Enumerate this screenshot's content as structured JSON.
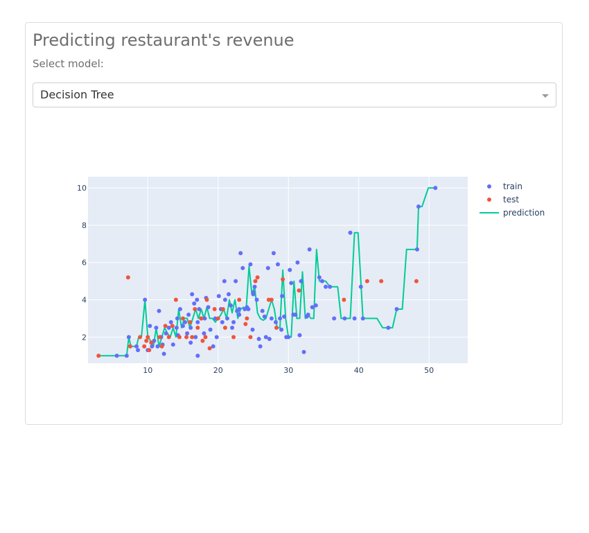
{
  "page": {
    "title": "Predicting restaurant's revenue",
    "select_label": "Select model:",
    "selected_model": "Decision Tree"
  },
  "colors": {
    "train": "#636efa",
    "test": "#ef553b",
    "prediction": "#00cc96",
    "plot_bg": "#e5ecf6",
    "grid": "#ffffff",
    "axis_text": "#2a3f5f"
  },
  "chart_data": {
    "type": "scatter",
    "title": "",
    "xlabel": "",
    "ylabel": "",
    "xlim": [
      1.5,
      55.5
    ],
    "ylim": [
      0.6,
      10.6
    ],
    "x_ticks": [
      10,
      20,
      30,
      40,
      50
    ],
    "y_ticks": [
      2,
      4,
      6,
      8,
      10
    ],
    "legend": {
      "position": "top-right",
      "entries": [
        "train",
        "test",
        "prediction"
      ]
    },
    "series": [
      {
        "name": "train",
        "mode": "markers",
        "x": [
          5.6,
          7.0,
          7.3,
          8.4,
          8.6,
          9.6,
          10.3,
          10.6,
          10.9,
          11.2,
          11.4,
          11.6,
          11.9,
          12.1,
          12.6,
          13.0,
          13.3,
          13.6,
          14.1,
          14.2,
          14.3,
          14.6,
          15.0,
          15.3,
          15.6,
          15.8,
          16.1,
          16.3,
          16.6,
          16.8,
          17.0,
          17.1,
          17.3,
          17.6,
          18.0,
          18.1,
          18.3,
          18.6,
          18.9,
          19.3,
          19.6,
          19.8,
          20.1,
          20.4,
          20.6,
          20.9,
          21.0,
          21.3,
          21.5,
          21.8,
          22.0,
          22.2,
          22.5,
          22.7,
          23.0,
          23.2,
          23.5,
          23.8,
          24.1,
          24.3,
          24.6,
          24.9,
          25.0,
          25.2,
          25.5,
          25.8,
          26.0,
          26.3,
          26.6,
          26.8,
          27.1,
          27.3,
          27.6,
          27.9,
          28.2,
          28.5,
          28.8,
          29.1,
          29.4,
          29.7,
          30.0,
          30.2,
          30.4,
          30.7,
          31.0,
          31.3,
          31.8,
          32.2,
          32.6,
          33.0,
          33.4,
          33.9,
          34.4,
          34.8,
          35.3,
          35.9,
          36.5,
          38.0,
          38.8,
          39.4,
          40.3,
          40.6,
          44.2,
          45.4,
          48.3,
          48.5,
          50.9,
          12.3,
          17.1,
          32.8,
          10.0,
          16.1,
          29.0,
          31.6,
          23.0,
          25.0
        ],
        "y": [
          1.0,
          1.0,
          2.0,
          1.5,
          1.3,
          4.0,
          2.6,
          1.5,
          1.8,
          2.5,
          1.5,
          3.4,
          2.0,
          1.6,
          2.2,
          2.5,
          2.8,
          1.6,
          2.5,
          3.0,
          2.1,
          3.5,
          2.6,
          2.8,
          2.2,
          3.2,
          2.5,
          4.3,
          3.8,
          2.0,
          4.0,
          2.8,
          3.5,
          3.0,
          2.2,
          3.0,
          4.1,
          3.6,
          2.4,
          1.5,
          3.0,
          2.0,
          4.2,
          3.5,
          2.8,
          5.0,
          4.0,
          3.0,
          4.3,
          3.7,
          2.5,
          2.8,
          5.0,
          3.4,
          3.2,
          6.5,
          5.7,
          3.5,
          3.6,
          3.5,
          5.9,
          2.4,
          4.3,
          4.7,
          4.0,
          1.9,
          1.5,
          3.4,
          3.1,
          2.0,
          5.7,
          1.9,
          3.0,
          6.5,
          2.8,
          5.9,
          3.0,
          4.2,
          3.1,
          2.0,
          2.0,
          5.6,
          4.9,
          3.2,
          3.2,
          6.0,
          5.0,
          1.2,
          3.1,
          6.7,
          3.6,
          3.7,
          5.2,
          5.0,
          4.7,
          4.7,
          3.0,
          3.0,
          7.6,
          3.0,
          4.7,
          3.0,
          2.5,
          3.5,
          6.7,
          9.0,
          10.0,
          1.1,
          1.0,
          3.2,
          1.3,
          1.7,
          2.4,
          2.1,
          3.5,
          4.4
        ],
        "color": "#636efa"
      },
      {
        "name": "test",
        "mode": "markers",
        "x": [
          3.0,
          7.2,
          7.5,
          8.9,
          9.5,
          9.8,
          10.0,
          10.2,
          10.5,
          11.7,
          12.0,
          12.5,
          13.0,
          13.5,
          14.0,
          14.5,
          15.0,
          15.5,
          16.0,
          16.3,
          16.7,
          17.1,
          17.6,
          17.8,
          18.2,
          18.4,
          18.8,
          19.5,
          20.0,
          20.7,
          21.0,
          22.2,
          23.0,
          23.9,
          24.1,
          24.6,
          25.3,
          25.6,
          27.2,
          27.6,
          28.3,
          29.2,
          31.5,
          37.9,
          41.2,
          43.2,
          48.2
        ],
        "y": [
          1.0,
          5.2,
          1.5,
          2.0,
          1.5,
          1.8,
          2.0,
          1.3,
          1.7,
          2.0,
          1.5,
          2.6,
          2.0,
          2.6,
          4.0,
          2.0,
          3.0,
          2.0,
          2.8,
          2.0,
          3.5,
          2.5,
          3.0,
          1.8,
          2.0,
          4.0,
          1.4,
          3.5,
          3.0,
          3.5,
          2.5,
          2.0,
          4.0,
          2.7,
          3.0,
          2.0,
          5.0,
          5.2,
          4.0,
          4.0,
          2.5,
          5.1,
          4.5,
          4.0,
          5.0,
          5.0,
          5.0
        ],
        "color": "#ef553b"
      },
      {
        "name": "prediction",
        "mode": "lines",
        "x": [
          3.0,
          5.6,
          7.0,
          7.3,
          7.6,
          8.0,
          8.4,
          8.7,
          9.1,
          9.6,
          10.0,
          10.4,
          10.8,
          11.2,
          11.6,
          12.0,
          12.4,
          12.8,
          13.2,
          13.6,
          14.0,
          14.4,
          14.8,
          15.2,
          15.6,
          16.0,
          16.4,
          16.8,
          17.2,
          17.6,
          18.0,
          18.4,
          18.8,
          19.2,
          19.6,
          20.0,
          20.4,
          20.8,
          21.2,
          21.6,
          22.0,
          22.4,
          22.8,
          23.2,
          23.6,
          24.0,
          24.4,
          24.8,
          25.2,
          25.6,
          26.0,
          26.4,
          26.8,
          27.2,
          27.6,
          28.0,
          28.4,
          28.8,
          29.2,
          29.6,
          30.0,
          30.4,
          30.8,
          31.2,
          31.6,
          32.0,
          32.4,
          32.8,
          33.2,
          33.6,
          34.0,
          34.4,
          34.8,
          35.3,
          35.9,
          36.5,
          37.0,
          37.5,
          38.0,
          38.8,
          39.4,
          39.9,
          40.6,
          41.2,
          42.0,
          42.6,
          43.4,
          44.2,
          44.8,
          45.4,
          46.2,
          46.8,
          47.4,
          48.3,
          48.5,
          49.0,
          49.9,
          50.4,
          50.9
        ],
        "y": [
          1.0,
          1.0,
          1.0,
          2.0,
          1.5,
          1.5,
          1.5,
          2.0,
          2.0,
          4.0,
          2.0,
          1.8,
          1.5,
          2.5,
          1.5,
          2.0,
          2.5,
          2.2,
          2.0,
          2.5,
          2.0,
          3.5,
          2.5,
          3.0,
          3.0,
          2.5,
          3.0,
          3.5,
          3.0,
          3.5,
          3.0,
          3.6,
          3.0,
          3.0,
          2.8,
          3.0,
          3.2,
          3.5,
          3.0,
          4.0,
          3.3,
          4.0,
          3.0,
          3.5,
          3.6,
          3.5,
          5.8,
          4.3,
          4.7,
          3.3,
          3.0,
          2.9,
          3.0,
          3.5,
          4.0,
          3.5,
          2.5,
          2.5,
          5.6,
          3.0,
          2.0,
          2.0,
          5.0,
          3.0,
          3.0,
          5.5,
          3.0,
          3.2,
          3.0,
          3.0,
          6.7,
          5.0,
          5.0,
          5.0,
          4.7,
          4.7,
          4.7,
          3.0,
          3.0,
          3.0,
          7.6,
          7.6,
          3.0,
          3.0,
          3.0,
          3.0,
          2.5,
          2.5,
          2.5,
          3.5,
          3.5,
          6.7,
          6.7,
          6.7,
          9.0,
          9.0,
          10.0,
          10.0,
          10.0
        ],
        "color": "#00cc96"
      }
    ]
  }
}
